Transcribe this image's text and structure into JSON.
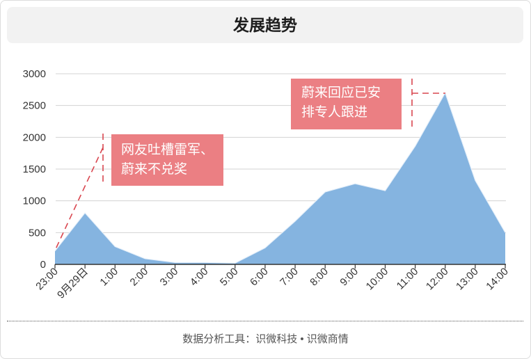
{
  "footer": "数据分析工具：识微科技 • 识微商情",
  "colors": {
    "area_fill": "#85b4e0",
    "area_edge": "#e6f0fa",
    "annotation_box": "#eb7f83",
    "annotation_pointer": "#d9464f",
    "annotation_text": "#ffffff",
    "grid": "#d3d3d3",
    "axis": "#333333"
  },
  "chart_data": {
    "type": "area",
    "title": "发展趋势",
    "xlabel": "",
    "ylabel": "",
    "categories": [
      "23:00",
      "9月29日",
      "1:00",
      "2:00",
      "3:00",
      "4:00",
      "5:00",
      "6:00",
      "7:00",
      "8:00",
      "9:00",
      "10:00",
      "11:00",
      "12:00",
      "13:00",
      "14:00"
    ],
    "values": [
      210,
      810,
      280,
      90,
      30,
      30,
      20,
      260,
      680,
      1140,
      1270,
      1160,
      1860,
      2700,
      1320,
      500
    ],
    "ylim": [
      0,
      3000
    ],
    "yticks": [
      0,
      500,
      1000,
      1500,
      2000,
      2500,
      3000
    ],
    "grid": true,
    "legend": "none",
    "annotations": [
      {
        "lines": [
          "网友吐槽雷军、",
          "蔚来不兑奖"
        ]
      },
      {
        "lines": [
          "蔚来回应已安",
          "排专人跟进"
        ]
      }
    ]
  }
}
